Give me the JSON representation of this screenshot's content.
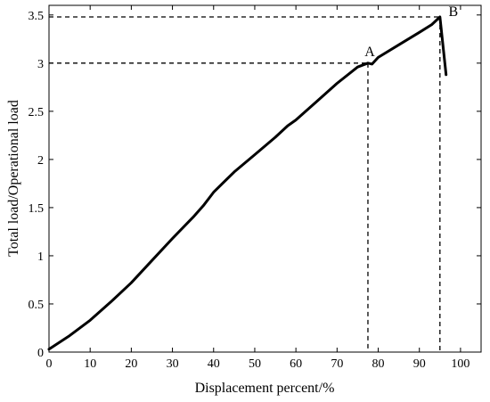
{
  "chart_data": {
    "type": "line",
    "title": "",
    "xlabel": "Displacement percent/%",
    "ylabel": "Total load/Operational load",
    "xlim": [
      0,
      105
    ],
    "ylim": [
      0,
      3.6
    ],
    "xticks": [
      0,
      10,
      20,
      30,
      40,
      50,
      60,
      70,
      80,
      90,
      100
    ],
    "yticks": [
      0,
      0.5,
      1,
      1.5,
      2,
      2.5,
      3,
      3.5
    ],
    "xtick_labels": [
      "0",
      "10",
      "20",
      "30",
      "40",
      "50",
      "60",
      "70",
      "80",
      "90",
      "100"
    ],
    "ytick_labels": [
      "0",
      "0.5",
      "1",
      "1.5",
      "2",
      "2.5",
      "3",
      "3.5"
    ],
    "grid": false,
    "series": [
      {
        "x": [
          0,
          5,
          10,
          15,
          20,
          25,
          30,
          35,
          37.5,
          40,
          45,
          50,
          55,
          58,
          60,
          65,
          70,
          75,
          77.5,
          78.5,
          80,
          85,
          90,
          93,
          95,
          96.5
        ],
        "y": [
          0.03,
          0.17,
          0.33,
          0.52,
          0.72,
          0.95,
          1.18,
          1.4,
          1.52,
          1.66,
          1.87,
          2.05,
          2.23,
          2.35,
          2.41,
          2.6,
          2.79,
          2.96,
          3.0,
          2.99,
          3.06,
          3.19,
          3.32,
          3.4,
          3.48,
          2.88
        ]
      }
    ],
    "annotations": [
      {
        "label": "A",
        "x": 77.5,
        "y": 3.0
      },
      {
        "label": "B",
        "x": 95,
        "y": 3.48
      }
    ],
    "colors": {
      "line": "#000000",
      "axis": "#000000"
    }
  }
}
